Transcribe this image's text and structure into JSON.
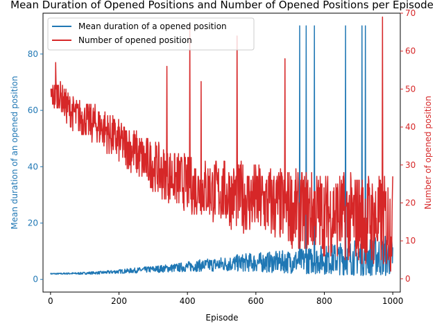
{
  "chart_data": {
    "type": "line",
    "title": "Mean Duration of Opened Positions and Number of Opened Positions per Episode",
    "xlabel": "Episode",
    "xlim": [
      -22,
      1022
    ],
    "xticks": [
      0,
      200,
      400,
      600,
      800,
      1000
    ],
    "y_left": {
      "label": "Mean duration of an opened position",
      "lim": [
        -4.5,
        94.5
      ],
      "ticks": [
        0,
        20,
        40,
        60,
        80
      ],
      "color": "#1f77b4"
    },
    "y_right": {
      "label": "Number of opened position",
      "lim": [
        -3.5,
        70
      ],
      "ticks": [
        0,
        10,
        20,
        30,
        40,
        50,
        60,
        70
      ],
      "color": "#d62728"
    },
    "legend": {
      "placement": "upper-left"
    },
    "grid": false,
    "series": [
      {
        "name": "Mean duration of a opened position",
        "axis": "left",
        "color": "#1f77b4",
        "x": [
          0,
          25,
          50,
          75,
          100,
          125,
          150,
          175,
          200,
          225,
          250,
          275,
          300,
          325,
          350,
          375,
          400,
          425,
          450,
          475,
          500,
          525,
          550,
          575,
          600,
          625,
          650,
          675,
          700,
          725,
          750,
          775,
          800,
          825,
          850,
          875,
          900,
          925,
          950,
          975,
          1000
        ],
        "values": [
          2.0,
          2.0,
          2.1,
          2.1,
          2.2,
          2.3,
          2.4,
          2.6,
          2.8,
          3.0,
          3.2,
          3.4,
          3.6,
          3.8,
          4.0,
          4.2,
          4.5,
          4.8,
          5.0,
          5.2,
          5.4,
          5.6,
          5.8,
          6.0,
          6.0,
          6.1,
          6.1,
          6.2,
          6.3,
          6.5,
          6.6,
          6.8,
          7.0,
          7.2,
          7.4,
          7.6,
          7.8,
          8.0,
          8.2,
          8.4,
          8.5
        ],
        "spikes": [
          {
            "x": 728,
            "y": 90
          },
          {
            "x": 747,
            "y": 90
          },
          {
            "x": 771,
            "y": 90
          },
          {
            "x": 862,
            "y": 90
          },
          {
            "x": 910,
            "y": 90
          },
          {
            "x": 920,
            "y": 90
          }
        ]
      },
      {
        "name": "Number of opened position",
        "axis": "right",
        "color": "#d62728",
        "x": [
          0,
          25,
          50,
          75,
          100,
          125,
          150,
          175,
          200,
          225,
          250,
          275,
          300,
          325,
          350,
          375,
          400,
          425,
          450,
          475,
          500,
          525,
          550,
          575,
          600,
          625,
          650,
          675,
          700,
          725,
          750,
          775,
          800,
          825,
          850,
          875,
          900,
          925,
          950,
          975,
          1000
        ],
        "values": [
          48,
          49,
          45,
          43,
          42,
          41,
          40,
          38,
          36,
          35,
          33,
          31,
          30,
          28,
          27,
          26,
          25,
          24,
          24,
          23,
          23,
          22,
          22,
          21,
          21,
          20,
          20,
          19,
          19,
          18,
          18,
          18,
          17,
          17,
          17,
          16,
          16,
          16,
          15,
          15,
          15
        ],
        "spikes": [
          {
            "x": 15,
            "y": 57
          },
          {
            "x": 340,
            "y": 56
          },
          {
            "x": 407,
            "y": 67
          },
          {
            "x": 440,
            "y": 52
          },
          {
            "x": 545,
            "y": 64
          },
          {
            "x": 685,
            "y": 58
          },
          {
            "x": 970,
            "y": 69
          }
        ]
      }
    ]
  }
}
